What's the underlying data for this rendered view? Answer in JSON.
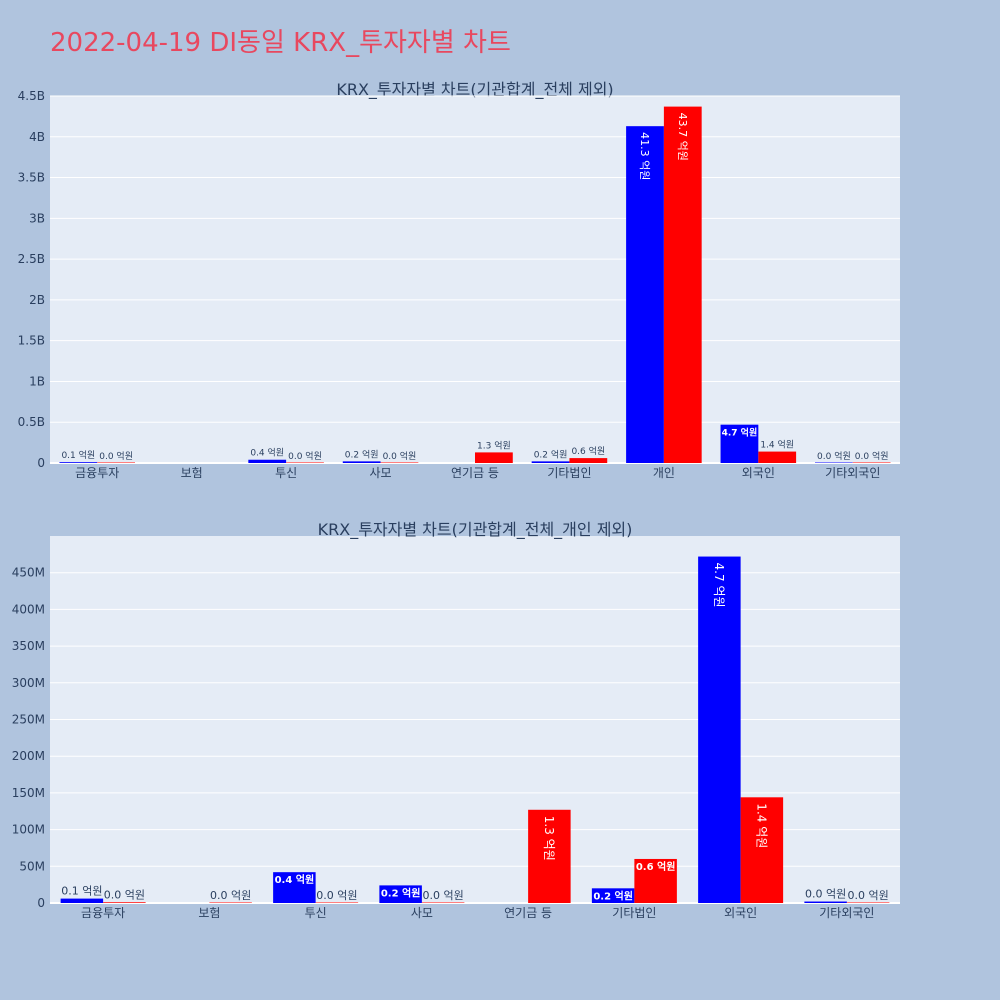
{
  "page": {
    "title": "2022-04-19 DI동일 KRX_투자자별 차트"
  },
  "colors": {
    "buy": "#0000ff",
    "sell": "#ff0000",
    "plot_bg": "#e5ecf6",
    "page_bg": "#b0c4de",
    "title": "#e8485f"
  },
  "chart_data": [
    {
      "type": "bar",
      "title": "KRX_투자자별 차트(기관합계_전체 제외)",
      "categories": [
        "금융투자",
        "보험",
        "투신",
        "사모",
        "연기금 등",
        "기타법인",
        "개인",
        "외국인",
        "기타외국인"
      ],
      "series": [
        {
          "values": [
            10000000,
            null,
            40000000,
            20000000,
            null,
            20000000,
            4130000000,
            470000000,
            0
          ],
          "labels": [
            "0.1 억원",
            "",
            "0.4 억원",
            "0.2 억원",
            "",
            "0.2 억원",
            "41.3 억원",
            "4.7 억원",
            "0.0 억원"
          ]
        },
        {
          "values": [
            0,
            null,
            0,
            0,
            130000000,
            60000000,
            4370000000,
            140000000,
            0
          ],
          "labels": [
            "0.0 억원",
            "",
            "0.0 억원",
            "0.0 억원",
            "1.3 억원",
            "0.6 억원",
            "43.7 억원",
            "1.4 억원",
            "0.0 억원"
          ]
        }
      ],
      "ylim": [
        0,
        4500000000
      ],
      "yticks": [
        0,
        500000000,
        1000000000,
        1500000000,
        2000000000,
        2500000000,
        3000000000,
        3500000000,
        4000000000,
        4500000000
      ],
      "ytick_labels": [
        "0",
        "0.5B",
        "1B",
        "1.5B",
        "2B",
        "2.5B",
        "3B",
        "3.5B",
        "4B",
        "4.5B"
      ],
      "grid": true
    },
    {
      "type": "bar",
      "title": "KRX_투자자별 차트(기관합계_전체_개인 제외)",
      "categories": [
        "금융투자",
        "보험",
        "투신",
        "사모",
        "연기금 등",
        "기타법인",
        "외국인",
        "기타외국인"
      ],
      "series": [
        {
          "values": [
            6000000,
            null,
            42000000,
            24000000,
            null,
            20000000,
            472000000,
            2000000
          ],
          "labels": [
            "0.1 억원",
            "",
            "0.4 억원",
            "0.2 억원",
            "",
            "0.2 억원",
            "4.7 억원",
            "0.0 억원"
          ]
        },
        {
          "values": [
            1000000,
            0,
            0,
            0,
            127000000,
            60000000,
            144000000,
            0
          ],
          "labels": [
            "0.0 억원",
            "0.0 억원",
            "0.0 억원",
            "0.0 억원",
            "1.3 억원",
            "0.6 억원",
            "1.4 억원",
            "0.0 억원"
          ]
        }
      ],
      "ylim": [
        0,
        500000000
      ],
      "yticks": [
        0,
        50000000,
        100000000,
        150000000,
        200000000,
        250000000,
        300000000,
        350000000,
        400000000,
        450000000
      ],
      "ytick_labels": [
        "0",
        "50M",
        "100M",
        "150M",
        "200M",
        "250M",
        "300M",
        "350M",
        "400M",
        "450M"
      ],
      "grid": true
    }
  ]
}
